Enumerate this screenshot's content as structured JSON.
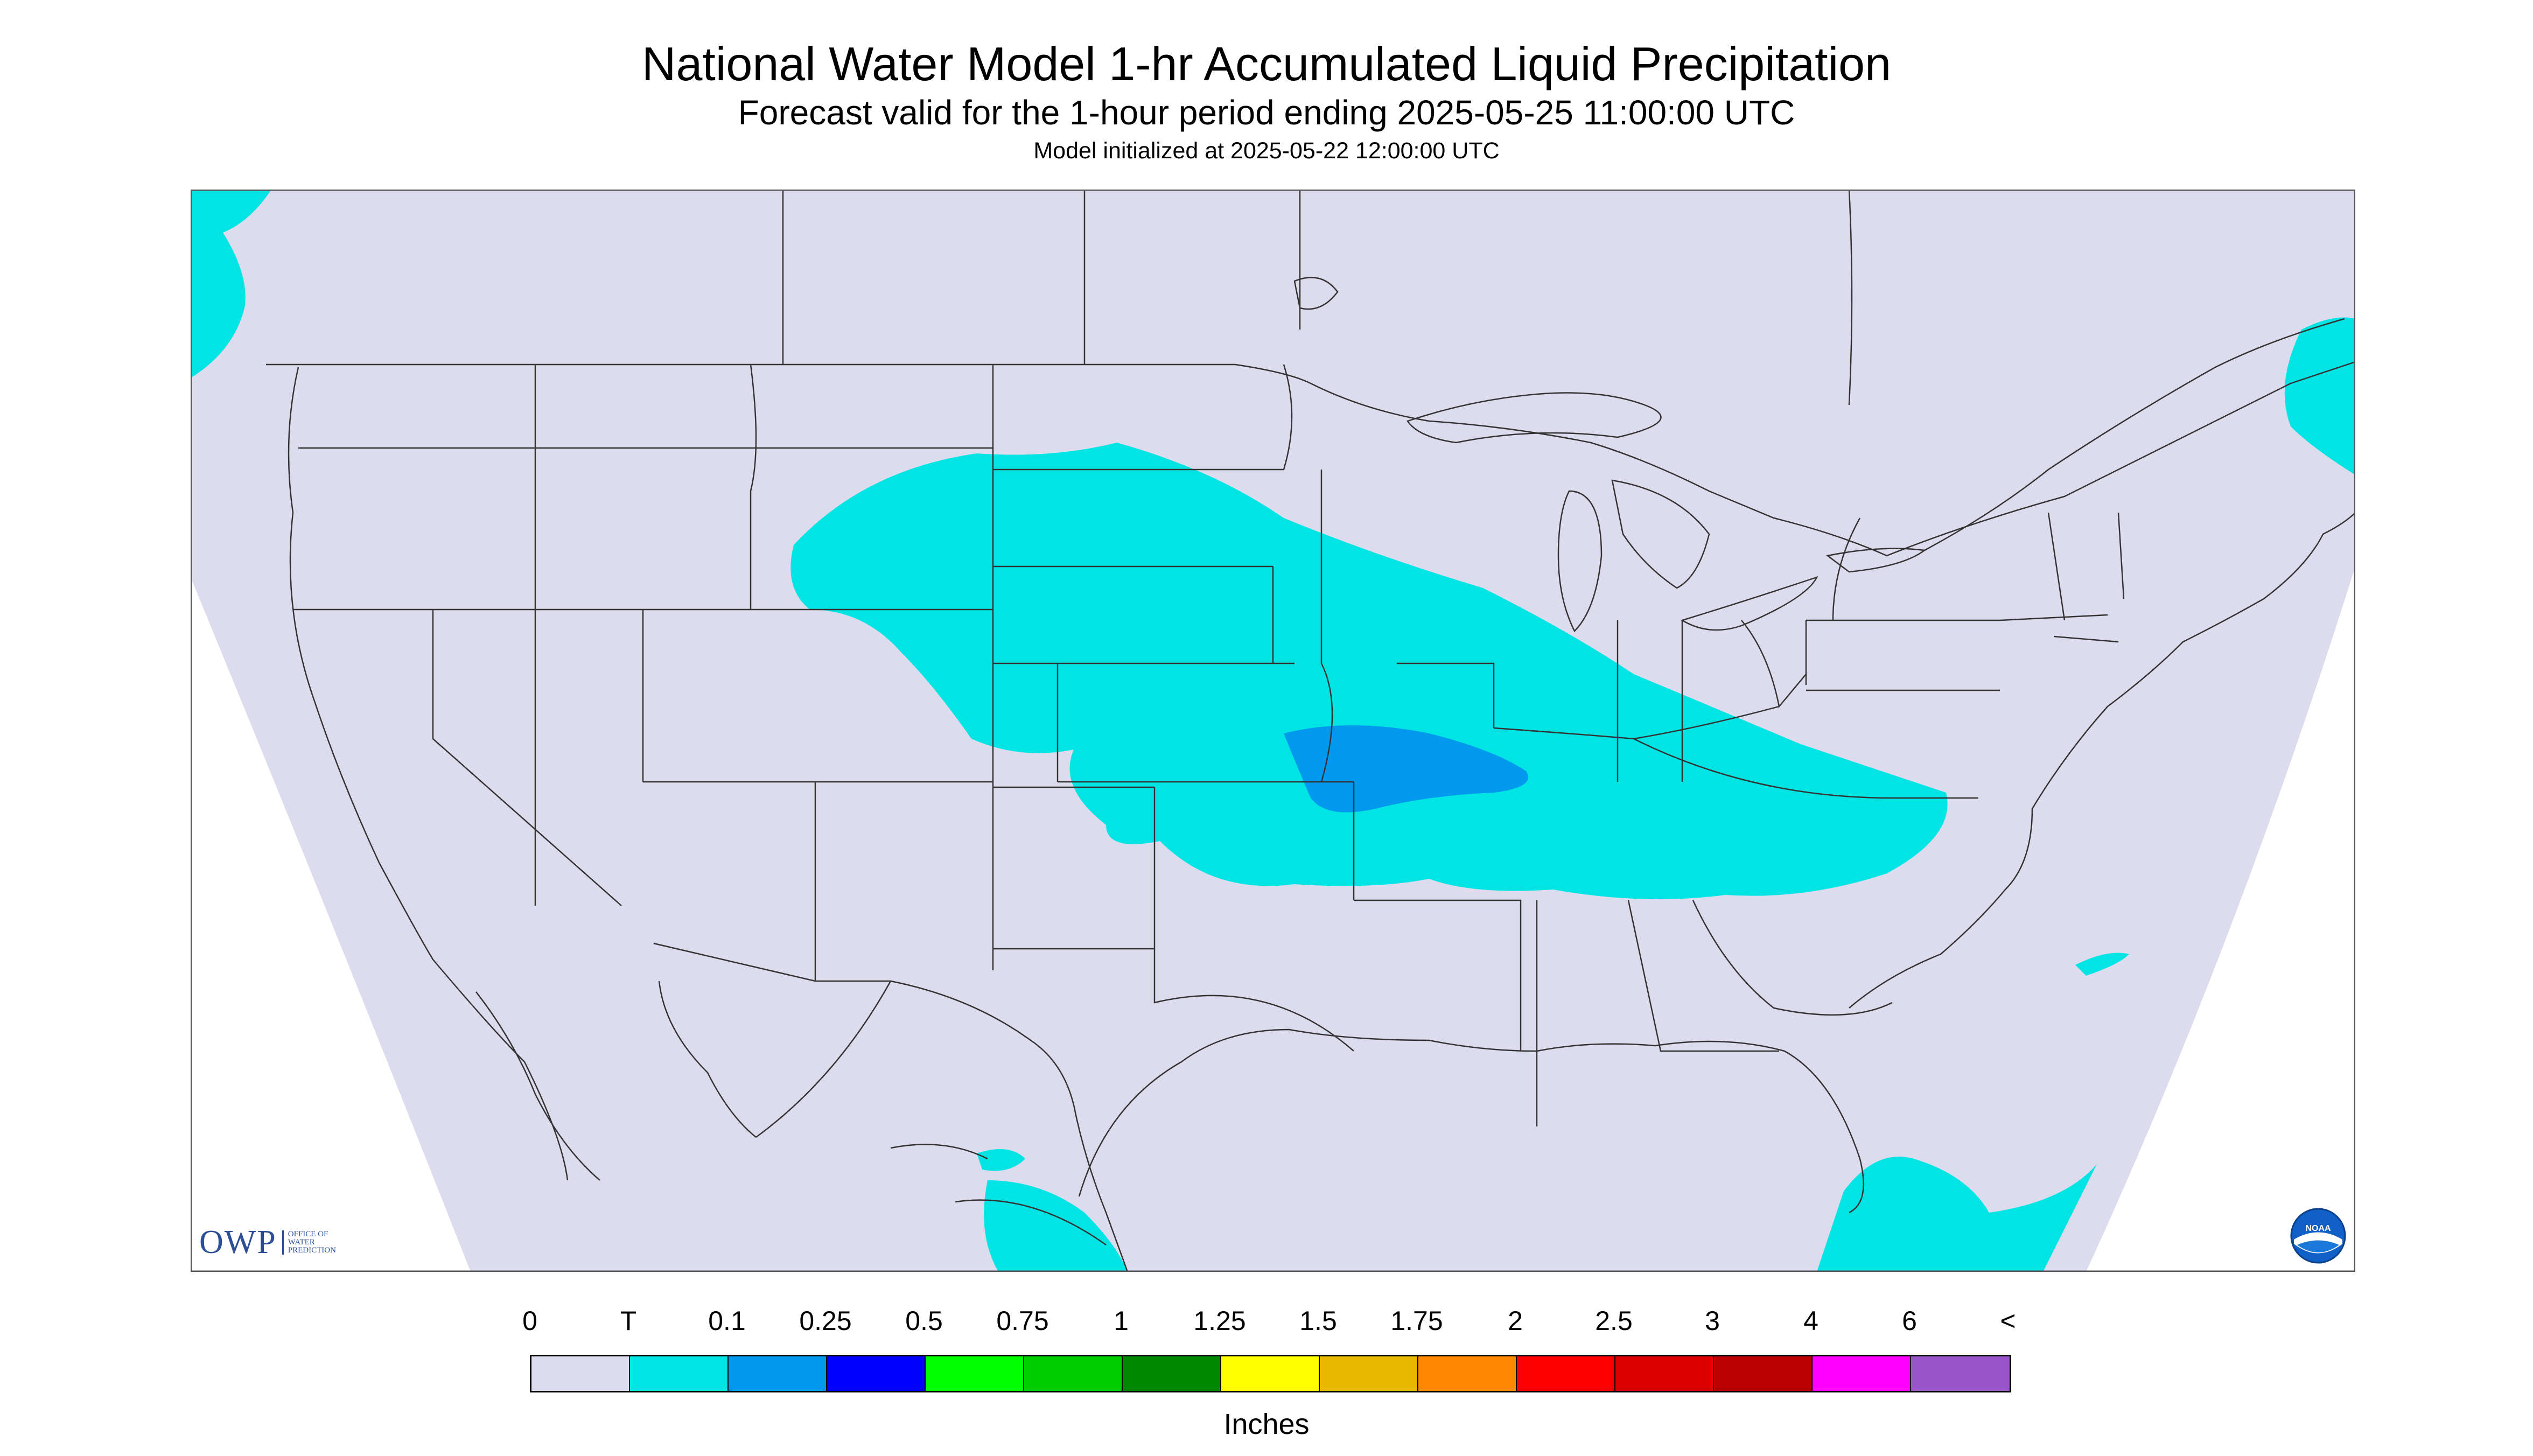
{
  "header": {
    "title": "National Water Model 1-hr Accumulated Liquid Precipitation",
    "subtitle": "Forecast valid for the 1-hour period ending 2025-05-25 11:00:00 UTC",
    "init": "Model initialized at 2025-05-22 12:00:00 UTC"
  },
  "colors": {
    "background": "#dcdcee",
    "outside_domain": "#ffffff",
    "boundary": "#333333",
    "light_precip": "#00e4e4",
    "moderate_precip": "#0099ee"
  },
  "legend": {
    "labels": [
      "0",
      "T",
      "0.1",
      "0.25",
      "0.5",
      "0.75",
      "1",
      "1.25",
      "1.5",
      "1.75",
      "2",
      "2.5",
      "3",
      "4",
      "6",
      "<"
    ],
    "colors": [
      "#dcdcee",
      "#00e4e4",
      "#0099ee",
      "#0000ff",
      "#00ff00",
      "#00cc00",
      "#008800",
      "#ffff00",
      "#e6b800",
      "#ff8800",
      "#ff0000",
      "#dd0000",
      "#bb0000",
      "#ff00ff",
      "#9955cc"
    ],
    "units": "Inches"
  },
  "logos": {
    "owp_mark": "OWP",
    "owp_text": [
      "Office of",
      "Water",
      "Prediction"
    ],
    "noaa_text": "NOAA"
  }
}
